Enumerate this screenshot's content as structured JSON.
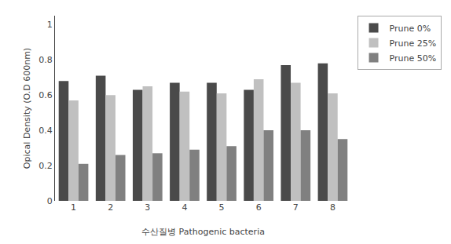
{
  "chart_data": {
    "type": "bar",
    "categories": [
      "1",
      "2",
      "3",
      "4",
      "5",
      "6",
      "7",
      "8"
    ],
    "series": [
      {
        "name": "Prune 0%",
        "color": "#4a4a4a",
        "values": [
          0.68,
          0.71,
          0.63,
          0.67,
          0.67,
          0.63,
          0.77,
          0.78
        ]
      },
      {
        "name": "Prune 25%",
        "color": "#c0c0c0",
        "values": [
          0.57,
          0.6,
          0.65,
          0.62,
          0.61,
          0.69,
          0.67,
          0.61
        ]
      },
      {
        "name": "Prune 50%",
        "color": "#808080",
        "values": [
          0.21,
          0.26,
          0.27,
          0.29,
          0.31,
          0.4,
          0.4,
          0.35
        ]
      }
    ],
    "xlabel": "수산질병 Pathogenic bacteria",
    "ylabel": "Opical Density (O.D 600nm)",
    "ylim": [
      0,
      1.05
    ],
    "yticks": [
      0,
      0.2,
      0.4,
      0.6,
      0.8,
      1
    ],
    "legend": "upper right",
    "grid": false
  }
}
